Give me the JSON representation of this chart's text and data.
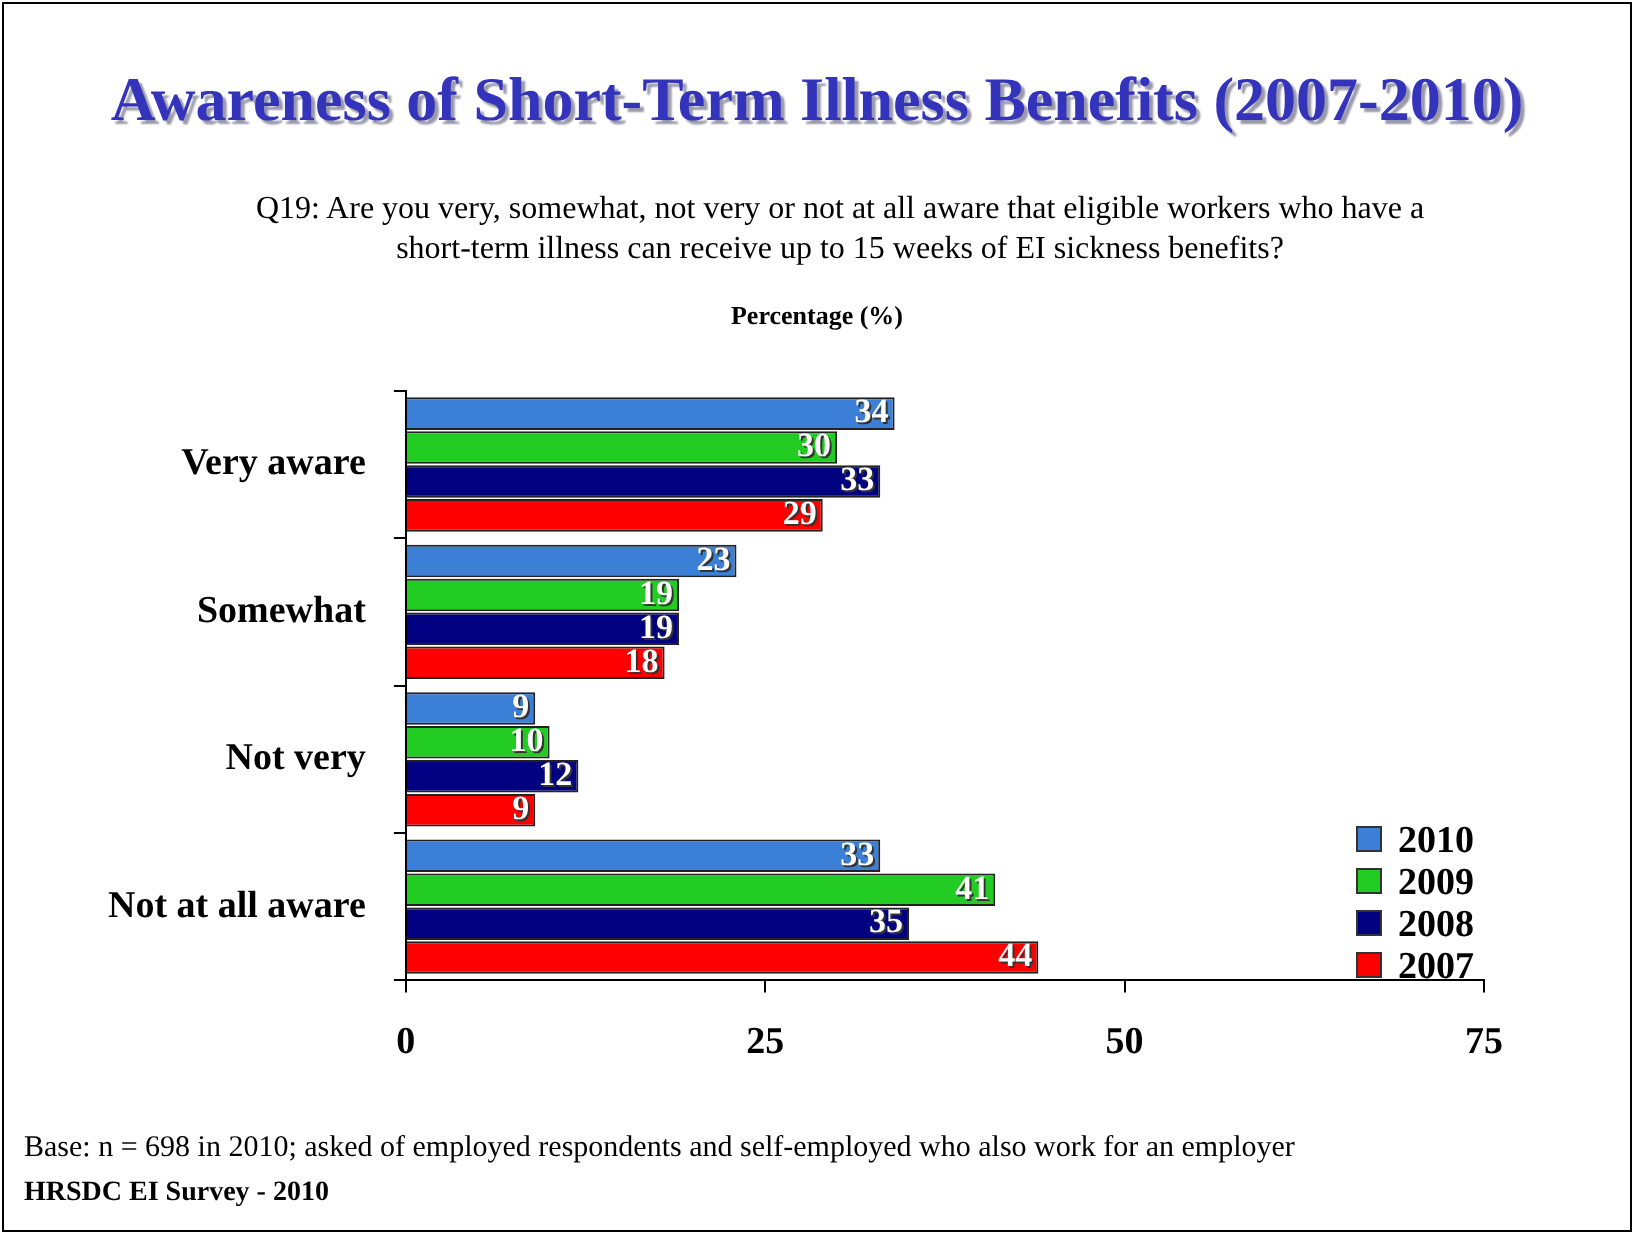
{
  "chart_data": {
    "type": "bar",
    "orientation": "horizontal",
    "title": "Awareness of Short-Term Illness Benefits (2007-2010)",
    "subtitle": "Q19: Are you very, somewhat, not very or not at all aware that eligible workers who have a short-term illness can receive up to 15 weeks of EI sickness benefits?",
    "xlabel": "Percentage (%)",
    "categories": [
      "Very aware",
      "Somewhat",
      "Not very",
      "Not at all aware"
    ],
    "series": [
      {
        "name": "2010",
        "color": "#3c7fd6",
        "values": [
          34,
          23,
          9,
          33
        ]
      },
      {
        "name": "2009",
        "color": "#22cc22",
        "values": [
          30,
          19,
          10,
          41
        ]
      },
      {
        "name": "2008",
        "color": "#000080",
        "values": [
          33,
          19,
          12,
          35
        ]
      },
      {
        "name": "2007",
        "color": "#ff0000",
        "values": [
          29,
          18,
          9,
          44
        ]
      }
    ],
    "xlim": [
      0,
      75
    ],
    "xticks": [
      0,
      25,
      50,
      75
    ],
    "grid": false,
    "legend": "bottom right",
    "data_labels": true,
    "annotations": [
      "Base: n = 698 in 2010; asked of employed respondents and self-employed who also work for an employer",
      "HRSDC EI Survey - 2010"
    ]
  }
}
